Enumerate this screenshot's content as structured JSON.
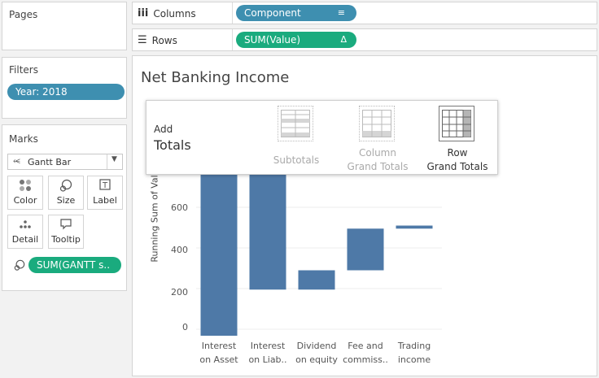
{
  "left": {
    "pages_title": "Pages",
    "filters_title": "Filters",
    "filter_pill": "Year: 2018",
    "marks_title": "Marks",
    "mark_type": "Gantt Bar",
    "buttons": [
      {
        "label": "Color",
        "icon": "color-dots-icon"
      },
      {
        "label": "Size",
        "icon": "size-icon"
      },
      {
        "label": "Label",
        "icon": "label-icon"
      },
      {
        "label": "Detail",
        "icon": "detail-icon"
      },
      {
        "label": "Tooltip",
        "icon": "tooltip-icon"
      }
    ],
    "size_pill": "SUM(GANTT s.."
  },
  "shelves": {
    "columns_label": "Columns",
    "columns_pill": "Component",
    "rows_label": "Rows",
    "rows_pill": "SUM(Value)"
  },
  "view": {
    "title": "Net Banking Income"
  },
  "popup": {
    "add": "Add",
    "totals": "Totals",
    "subtotals": "Subtotals",
    "column_line1": "Column",
    "column_line2": "Grand Totals",
    "row_line1": "Row",
    "row_line2": "Grand Totals"
  },
  "chart_data": {
    "type": "bar",
    "ylabel": "Running Sum of Valu",
    "yticks": [
      0,
      200,
      400,
      600
    ],
    "ylim": [
      -30,
      800
    ],
    "categories": [
      [
        "Interest",
        "on Asset"
      ],
      [
        "Interest",
        "on Liab.."
      ],
      [
        "Dividend",
        "on equity"
      ],
      [
        "Fee and",
        "commiss.."
      ],
      [
        "Trading",
        "income"
      ]
    ],
    "bars": [
      {
        "start": -35,
        "end": 800
      },
      {
        "start": 195,
        "end": 800
      },
      {
        "start": 195,
        "end": 290
      },
      {
        "start": 290,
        "end": 495
      },
      {
        "start": 495,
        "end": 510
      }
    ],
    "colors": {
      "bar": "#4e79a7",
      "grid": "#ececec"
    }
  },
  "colors": {
    "pill_blue": "#3e8fb0",
    "pill_green": "#1aab7e"
  }
}
